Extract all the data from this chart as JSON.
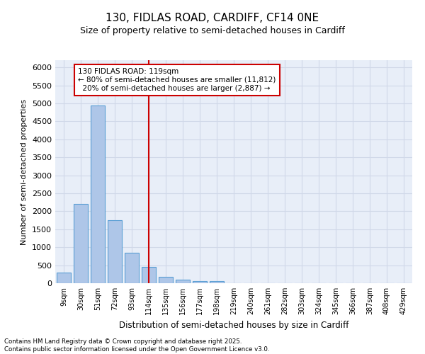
{
  "title1": "130, FIDLAS ROAD, CARDIFF, CF14 0NE",
  "title2": "Size of property relative to semi-detached houses in Cardiff",
  "xlabel": "Distribution of semi-detached houses by size in Cardiff",
  "ylabel": "Number of semi-detached properties",
  "footer": "Contains HM Land Registry data © Crown copyright and database right 2025.\nContains public sector information licensed under the Open Government Licence v3.0.",
  "bin_labels": [
    "9sqm",
    "30sqm",
    "51sqm",
    "72sqm",
    "93sqm",
    "114sqm",
    "135sqm",
    "156sqm",
    "177sqm",
    "198sqm",
    "219sqm",
    "240sqm",
    "261sqm",
    "282sqm",
    "303sqm",
    "324sqm",
    "345sqm",
    "366sqm",
    "387sqm",
    "408sqm",
    "429sqm"
  ],
  "bar_values": [
    300,
    2200,
    4950,
    1750,
    850,
    450,
    175,
    100,
    65,
    50,
    0,
    0,
    0,
    0,
    0,
    0,
    0,
    0,
    0,
    0,
    0
  ],
  "bar_color": "#aec6e8",
  "bar_edge_color": "#5a9fd4",
  "grid_color": "#d0d8e8",
  "background_color": "#e8eef8",
  "property_label": "130 FIDLAS ROAD: 119sqm",
  "pct_smaller": 80,
  "pct_smaller_count": 11812,
  "pct_larger": 20,
  "pct_larger_count": 2887,
  "vline_color": "#cc0000",
  "annotation_box_color": "#cc0000",
  "vline_x": 5.0,
  "ylim": [
    0,
    6200
  ],
  "yticks": [
    0,
    500,
    1000,
    1500,
    2000,
    2500,
    3000,
    3500,
    4000,
    4500,
    5000,
    5500,
    6000
  ]
}
